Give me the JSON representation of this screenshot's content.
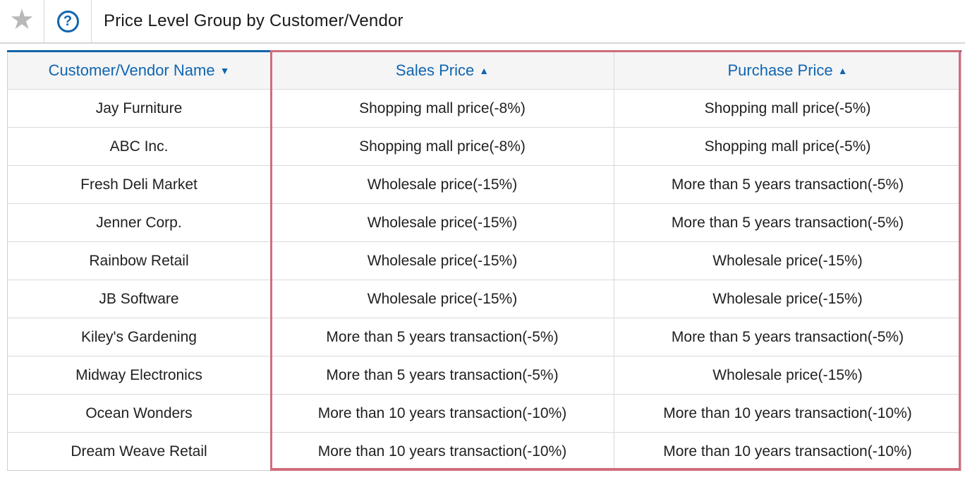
{
  "topbar": {
    "title": "Price Level Group by Customer/Vendor",
    "favorite_icon": "star",
    "help_icon": "question-mark"
  },
  "icons": {
    "star_glyph": "★",
    "help_glyph": "?",
    "sort_desc_glyph": "▼",
    "sort_asc_glyph": "▲"
  },
  "colors": {
    "link_blue": "#1065b0",
    "table_top_border_blue": "#1266a9",
    "highlight_pink": "#d06d7b",
    "header_background": "#f5f5f5",
    "grid_line": "#d9d9d9",
    "star_gray": "#b9b9b9"
  },
  "table": {
    "columns": [
      {
        "label": "Customer/Vendor Name",
        "sort": "desc"
      },
      {
        "label": "Sales Price",
        "sort": "asc"
      },
      {
        "label": "Purchase Price",
        "sort": "asc"
      }
    ],
    "rows": [
      {
        "name": "Jay Furniture",
        "sales_price": "Shopping mall price(-8%)",
        "purchase_price": "Shopping mall price(-5%)"
      },
      {
        "name": "ABC Inc.",
        "sales_price": "Shopping mall price(-8%)",
        "purchase_price": "Shopping mall price(-5%)"
      },
      {
        "name": "Fresh Deli Market",
        "sales_price": "Wholesale price(-15%)",
        "purchase_price": "More than 5 years transaction(-5%)"
      },
      {
        "name": "Jenner Corp.",
        "sales_price": "Wholesale price(-15%)",
        "purchase_price": "More than 5 years transaction(-5%)"
      },
      {
        "name": "Rainbow Retail",
        "sales_price": "Wholesale price(-15%)",
        "purchase_price": "Wholesale price(-15%)"
      },
      {
        "name": "JB Software",
        "sales_price": "Wholesale price(-15%)",
        "purchase_price": "Wholesale price(-15%)"
      },
      {
        "name": "Kiley's Gardening",
        "sales_price": "More than 5 years transaction(-5%)",
        "purchase_price": "More than 5 years transaction(-5%)"
      },
      {
        "name": "Midway Electronics",
        "sales_price": "More than 5 years transaction(-5%)",
        "purchase_price": "Wholesale price(-15%)"
      },
      {
        "name": "Ocean Wonders",
        "sales_price": "More than 10 years transaction(-10%)",
        "purchase_price": "More than 10 years transaction(-10%)"
      },
      {
        "name": "Dream Weave Retail",
        "sales_price": "More than 10 years transaction(-10%)",
        "purchase_price": "More than 10 years transaction(-10%)"
      }
    ]
  }
}
